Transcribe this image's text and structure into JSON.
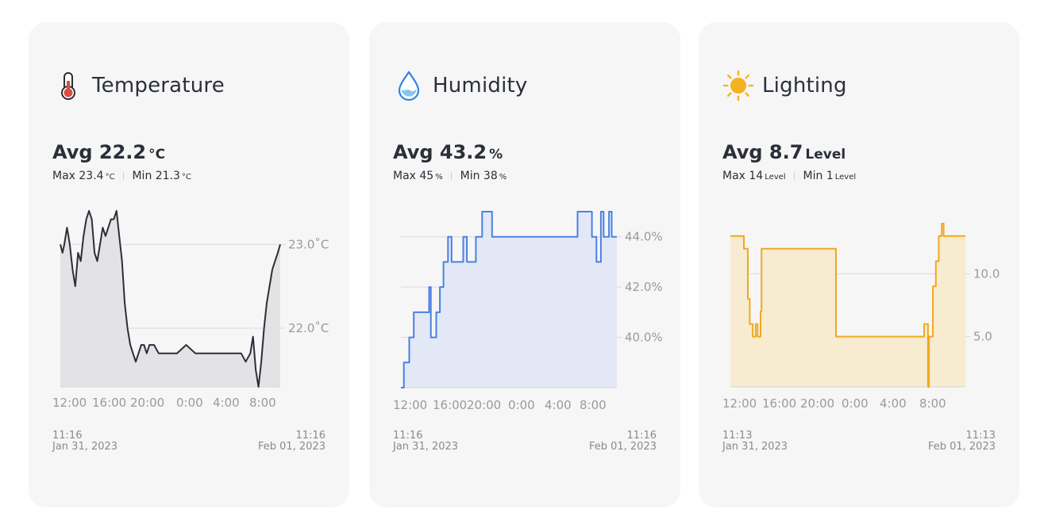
{
  "cards": [
    {
      "title": "Temperature",
      "icon": "thermometer-icon",
      "color": "#2b2f38",
      "fill": "#e3e3e5",
      "avg_label": "Avg 22.2",
      "unit": "°C",
      "max_label": "Max 23.4",
      "min_label": "Min 21.3",
      "start_time": "11:16",
      "start_date": "Jan 31, 2023",
      "end_time": "11:16",
      "end_date": "Feb 01, 2023"
    },
    {
      "title": "Humidity",
      "icon": "water-drop-icon",
      "color": "#4a80e3",
      "fill": "#e3e8f6",
      "avg_label": "Avg 43.2",
      "unit": "%",
      "max_label": "Max 45",
      "min_label": "Min 38",
      "start_time": "11:16",
      "start_date": "Jan 31, 2023",
      "end_time": "11:16",
      "end_date": "Feb 01, 2023"
    },
    {
      "title": "Lighting",
      "icon": "sun-icon",
      "color": "#f0a91e",
      "fill": "#f7ebd0",
      "avg_label": "Avg 8.7",
      "unit": "Level",
      "max_label": "Max 14",
      "min_label": "Min 1",
      "start_time": "11:13",
      "start_date": "Jan 31, 2023",
      "end_time": "11:13",
      "end_date": "Feb 01, 2023"
    }
  ],
  "chart_data": [
    {
      "type": "area",
      "ylim": [
        21.3,
        23.4
      ],
      "x_ticks": [
        12,
        16,
        20,
        24,
        28,
        32
      ],
      "x_tick_labels": [
        "12:00",
        "16:00",
        "20:00",
        "0:00",
        "4:00",
        "8:00"
      ],
      "y_ticks": [
        22.0,
        23.0
      ],
      "y_tick_labels": [
        "22.0˚C",
        "23.0˚C"
      ],
      "x": [
        11.27,
        11.5,
        11.7,
        12.0,
        12.3,
        12.6,
        12.9,
        13.2,
        13.5,
        13.8,
        14.1,
        14.4,
        14.7,
        15.0,
        15.3,
        15.6,
        15.9,
        16.2,
        16.5,
        16.8,
        17.1,
        17.4,
        17.7,
        18.0,
        18.3,
        18.6,
        18.9,
        19.2,
        19.5,
        19.8,
        20.1,
        20.4,
        20.7,
        21.0,
        21.5,
        22.0,
        23.0,
        24.0,
        25.0,
        26.0,
        27.0,
        28.0,
        29.0,
        30.0,
        31.0,
        31.5,
        32.0,
        32.3,
        32.6,
        32.9,
        33.2,
        33.5,
        33.8,
        34.1,
        34.4,
        34.7,
        35.0,
        35.27
      ],
      "y": [
        23.0,
        22.9,
        23.0,
        23.2,
        23.0,
        22.7,
        22.5,
        22.9,
        22.8,
        23.1,
        23.3,
        23.4,
        23.3,
        22.9,
        22.8,
        23.0,
        23.2,
        23.1,
        23.2,
        23.3,
        23.3,
        23.4,
        23.1,
        22.8,
        22.3,
        22.0,
        21.8,
        21.7,
        21.6,
        21.7,
        21.8,
        21.8,
        21.7,
        21.8,
        21.8,
        21.7,
        21.7,
        21.7,
        21.8,
        21.7,
        21.7,
        21.7,
        21.7,
        21.7,
        21.7,
        21.6,
        21.7,
        21.9,
        21.5,
        21.3,
        21.6,
        22.0,
        22.3,
        22.5,
        22.7,
        22.8,
        22.9,
        23.0
      ],
      "fill_baseline": 21.3
    },
    {
      "type": "area",
      "ylim": [
        38,
        45
      ],
      "x_ticks": [
        12,
        16,
        20,
        24,
        28,
        32
      ],
      "x_tick_labels": [
        "12:00",
        "16:00",
        "20:00",
        "0:00",
        "4:00",
        "8:00"
      ],
      "y_ticks": [
        40,
        42,
        44
      ],
      "y_tick_labels": [
        "40.0%",
        "42.0%",
        "44.0%"
      ],
      "x": [
        11.27,
        11.6,
        11.6,
        12.2,
        12.2,
        12.7,
        12.7,
        13.4,
        13.4,
        14.4,
        14.4,
        14.6,
        14.6,
        15.2,
        15.2,
        15.6,
        15.6,
        16.0,
        16.0,
        16.5,
        16.5,
        16.9,
        16.9,
        18.2,
        18.2,
        18.6,
        18.6,
        19.6,
        19.6,
        20.3,
        20.3,
        21.4,
        21.4,
        30.9,
        30.9,
        32.5,
        32.5,
        33.0,
        33.0,
        33.5,
        33.5,
        33.8,
        33.8,
        34.4,
        34.4,
        34.7,
        34.7,
        35.27
      ],
      "y": [
        38,
        38,
        39,
        39,
        40,
        40,
        41,
        41,
        41,
        41,
        42,
        42,
        40,
        40,
        41,
        41,
        42,
        42,
        43,
        43,
        44,
        44,
        43,
        43,
        44,
        44,
        43,
        43,
        44,
        44,
        45,
        45,
        44,
        44,
        45,
        45,
        44,
        44,
        43,
        43,
        45,
        45,
        44,
        44,
        45,
        45,
        44,
        44
      ],
      "fill_baseline": 38
    },
    {
      "type": "area",
      "ylim": [
        1,
        14
      ],
      "x_ticks": [
        12,
        16,
        20,
        24,
        28,
        32
      ],
      "x_tick_labels": [
        "12:00",
        "16:00",
        "20:00",
        "0:00",
        "4:00",
        "8:00"
      ],
      "y_ticks": [
        5.0,
        10.0
      ],
      "y_tick_labels": [
        "5.0",
        "10.0"
      ],
      "x": [
        11.22,
        12.6,
        12.6,
        13.0,
        13.0,
        13.2,
        13.2,
        13.5,
        13.5,
        13.8,
        13.8,
        14.0,
        14.0,
        14.3,
        14.3,
        14.4,
        14.4,
        22.0,
        22.0,
        31.0,
        31.0,
        31.4,
        31.4,
        31.5,
        31.5,
        31.9,
        31.9,
        32.2,
        32.2,
        32.5,
        32.5,
        32.8,
        32.8,
        33.0,
        33.0,
        33.3,
        33.3,
        35.22
      ],
      "y": [
        13,
        13,
        12,
        12,
        8,
        8,
        6,
        6,
        5,
        5,
        6,
        6,
        5,
        5,
        7,
        7,
        12,
        12,
        5,
        5,
        6,
        6,
        1,
        1,
        5,
        5,
        9,
        9,
        11,
        11,
        13,
        13,
        14,
        14,
        13,
        13,
        13,
        13
      ],
      "fill_baseline": 1
    }
  ]
}
